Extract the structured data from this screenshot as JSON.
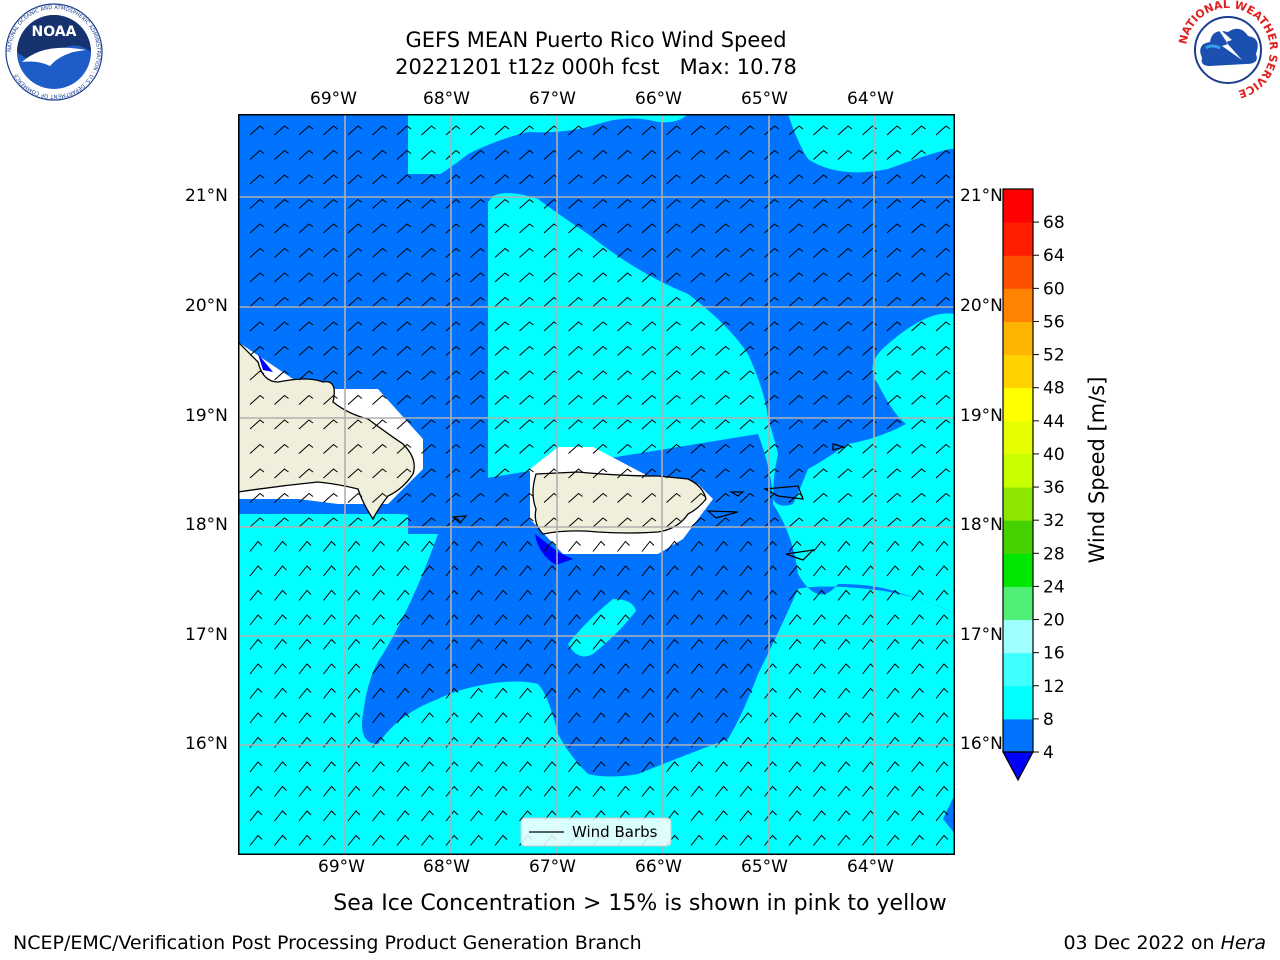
{
  "title_line1": "GEFS MEAN Puerto Rico Wind Speed",
  "title_line2": "20221201 t12z 000h fcst   Max: 10.78",
  "logo_left_text": "NOAA",
  "logo_left_ring_text": "NATIONAL OCEANIC AND ATMOSPHERIC ADMINISTRATION · U.S. DEPARTMENT OF COMMERCE",
  "logo_right_ring_text": "NATIONAL WEATHER SERVICE",
  "lon_labels": [
    "69°W",
    "68°W",
    "67°W",
    "66°W",
    "65°W",
    "64°W"
  ],
  "lat_labels": [
    "21°N",
    "20°N",
    "19°N",
    "18°N",
    "17°N",
    "16°N"
  ],
  "legend_label": "Wind Barbs",
  "colorbar": {
    "label": "Wind Speed [m/s]",
    "ticks": [
      "4",
      "8",
      "12",
      "16",
      "20",
      "24",
      "28",
      "32",
      "36",
      "40",
      "44",
      "48",
      "52",
      "56",
      "60",
      "64",
      "68"
    ],
    "colors": [
      "#0073ff",
      "#00ffff",
      "#40ffff",
      "#a0ffff",
      "#50f078",
      "#00e600",
      "#46d200",
      "#8ce600",
      "#c8ff00",
      "#e6ff00",
      "#ffff00",
      "#ffd200",
      "#ffb400",
      "#ff8200",
      "#ff5000",
      "#ff1e00",
      "#ff0000"
    ],
    "under_color": "#0000ff"
  },
  "map_colors": {
    "cyan": "#00ffff",
    "blue": "#0073ff",
    "land": "#efefdc",
    "white": "#ffffff",
    "under": "#0000ff"
  },
  "note": "Sea Ice Concentration > 15% is shown in pink to yellow",
  "footer_left": "NCEP/EMC/Verification Post Processing Product Generation Branch",
  "footer_right_date": "03 Dec 2022 on ",
  "footer_right_host": "Hera"
}
